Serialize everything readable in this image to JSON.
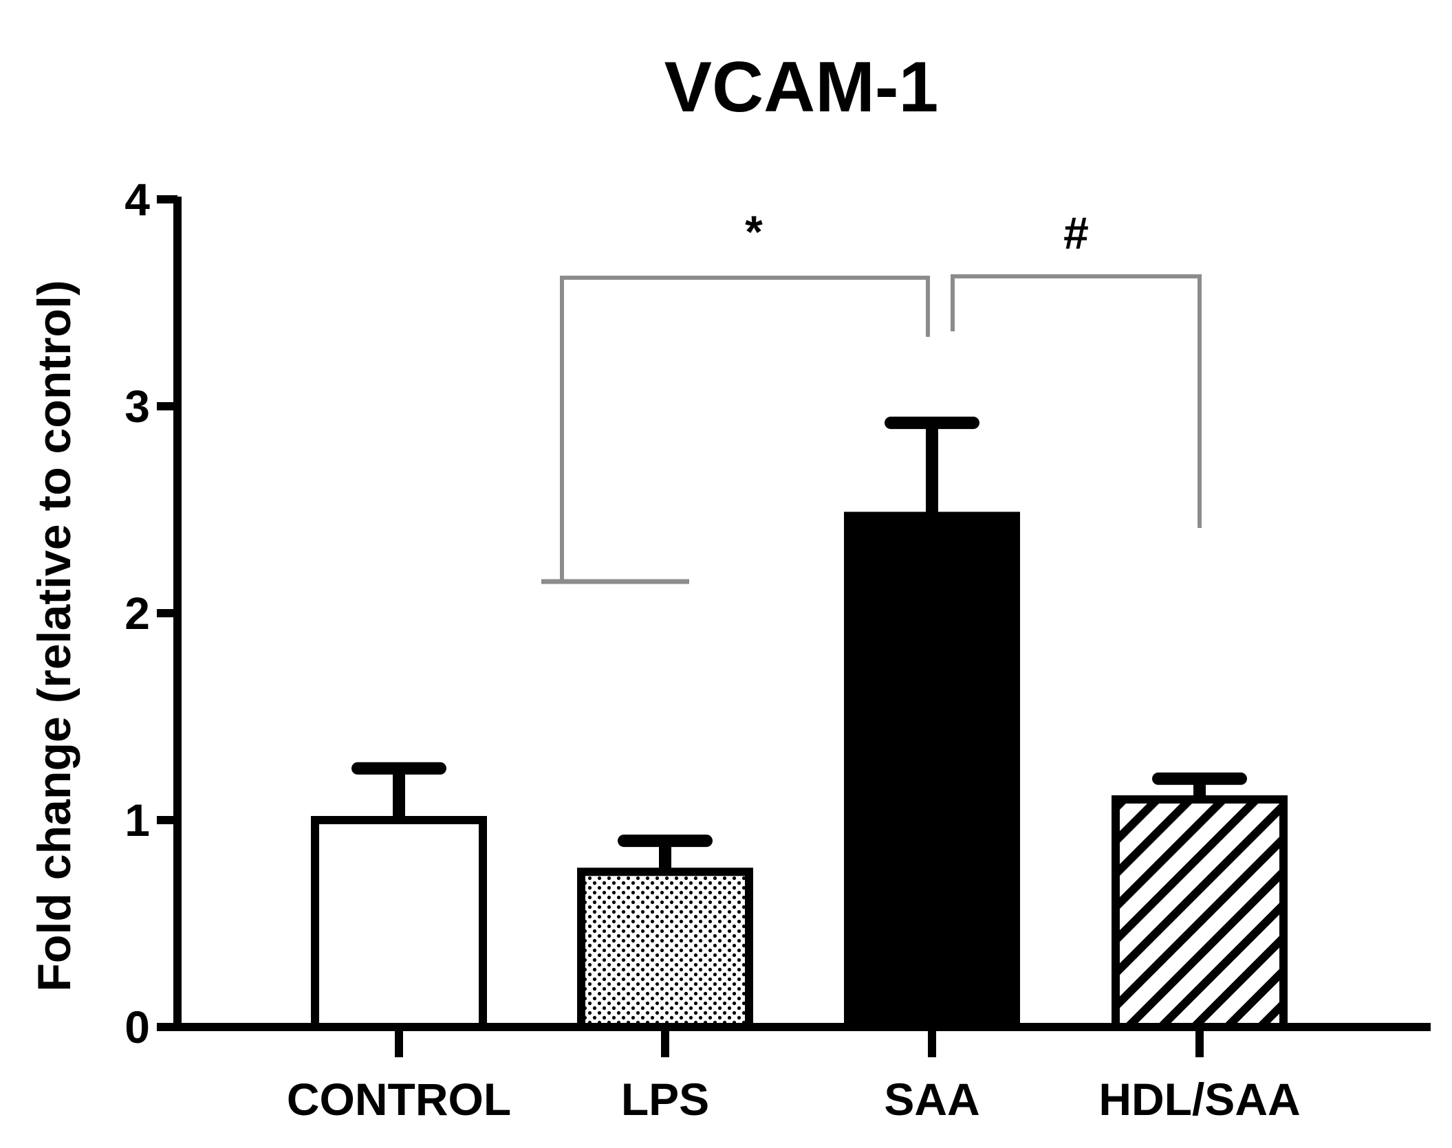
{
  "chart_data": {
    "type": "bar",
    "title": "VCAM-1",
    "xlabel": "",
    "ylabel": "Fold change (relative to control)",
    "ylim": [
      0,
      4
    ],
    "yticks": [
      0,
      1,
      2,
      3,
      4
    ],
    "grid": false,
    "categories": [
      "CONTROL",
      "LPS",
      "SAA",
      "HDL/SAA"
    ],
    "values": [
      1.0,
      0.75,
      2.47,
      1.1
    ],
    "error_upper": [
      0.25,
      0.15,
      0.45,
      0.1
    ],
    "patterns": [
      "white",
      "dotted",
      "solid-black",
      "diagonal-hatch"
    ],
    "significance": [
      {
        "label": "*",
        "from": "LPS",
        "to": "SAA"
      },
      {
        "label": "#",
        "from": "SAA",
        "to": "HDL/SAA"
      }
    ]
  }
}
